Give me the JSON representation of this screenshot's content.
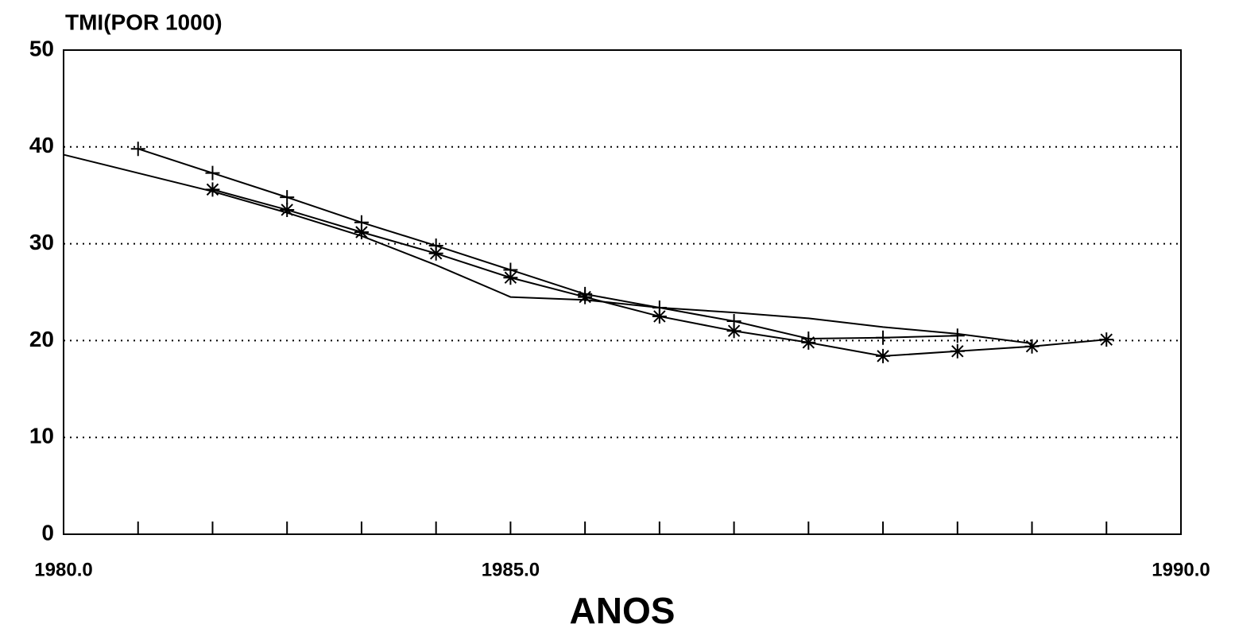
{
  "chart_data": {
    "type": "line",
    "title": "TMI(POR 1000)",
    "xlabel": "ANOS",
    "categories": [
      "1980.0",
      null,
      null,
      null,
      null,
      null,
      "1985.0",
      null,
      null,
      null,
      null,
      null,
      null,
      null,
      null,
      "1990.0"
    ],
    "series": [
      {
        "color": "#000000",
        "marker": "plus",
        "values": [
          null,
          39.8,
          37.3,
          34.8,
          32.2,
          29.8,
          27.3,
          24.8,
          23.4,
          22.0,
          20.2,
          20.3,
          20.5,
          null,
          null,
          null
        ]
      },
      {
        "color": "#000000",
        "marker": "star",
        "values": [
          null,
          null,
          35.6,
          33.5,
          31.2,
          29.0,
          26.5,
          24.5,
          22.5,
          21.0,
          19.8,
          18.4,
          18.9,
          19.4,
          20.1,
          null
        ]
      },
      {
        "color": "#000000",
        "marker": "none",
        "values": [
          39.2,
          37.3,
          35.4,
          33.2,
          30.8,
          27.8,
          24.5,
          24.2,
          23.4,
          22.9,
          22.3,
          21.4,
          20.7,
          19.7,
          null,
          null
        ]
      }
    ],
    "ylim": [
      0,
      50
    ],
    "yticks": [
      0,
      10,
      20,
      30,
      40,
      50
    ],
    "grid": true
  }
}
